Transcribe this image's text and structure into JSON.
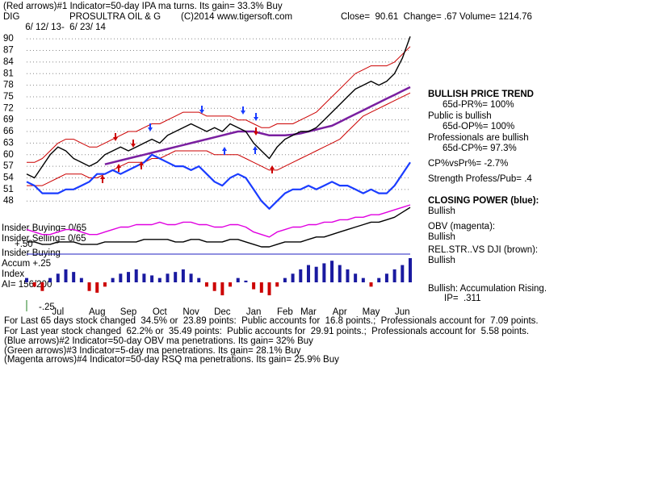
{
  "header": [
    "(Red arrows)#1 Indicator=50-day IPA ma turns. Its gain= 33.3% Buy",
    "DIG",
    "PROSULTRA OIL & G",
    "(C)2014 www.tigersoft.com",
    "Close=  90.61  Change= .67 Volume= 1214.76",
    " 6/ 12/ 13-  6/ 23/ 14"
  ],
  "sidebar": [
    "BULLISH PRICE TREND",
    "65d-PR%= 100%",
    "Public is bullish",
    "65d-OP%= 100%",
    "Professionals are bullish",
    "65d-CP%= 97.3%",
    "CP%vsPr%= -2.7%",
    "Strength Profess/Pub= .4",
    "CLOSING POWER (blue):",
    "Bullish",
    "OBV (magenta):",
    "Bullish",
    "REL.STR..VS DJI (brown):",
    "Bullish",
    "Bullish: Accumulation Rising.",
    "IP=  .311"
  ],
  "panel_labels": [
    "Insider Buying= 0/65",
    "Insider Selling= 0/65",
    "Insider Buying",
    "Accum +.25",
    "+.50",
    "Index",
    "AI= 156/200",
    "-.25"
  ],
  "footer": [
    "For Last 65 days stock changed  34.5% or  23.89 points:  Public accounts for  16.8 points.;  Professionals account for  7.09 points.",
    "For Last year stock changed  62.2% or  35.49 points:  Public accounts for  29.91 points.;  Professionals account for  5.58 points.",
    "(Blue arrows)#2 Indicator=50-day OBV ma penetrations. Its gain= 32% Buy",
    "(Green arrows)#3 Indicator=5-day ma penetrations. Its gain= 28.1% Buy",
    "(Magenta arrows)#4 Indicator=50-day RSQ ma penetrations. Its gain= 25.9% Buy"
  ],
  "chart_data": [
    {
      "type": "line",
      "categories": [
        null,
        null,
        null,
        null,
        "Jul",
        null,
        null,
        null,
        null,
        "Aug",
        null,
        null,
        null,
        "Sep",
        null,
        null,
        null,
        "Oct",
        null,
        null,
        null,
        "Nov",
        null,
        null,
        null,
        "Dec",
        null,
        null,
        null,
        "Jan",
        null,
        null,
        null,
        "Feb",
        null,
        null,
        "Mar",
        null,
        null,
        null,
        "Apr",
        null,
        null,
        null,
        "May",
        null,
        null,
        null,
        "Jun",
        null
      ],
      "ylim": [
        44.7,
        91.7
      ],
      "yticks": [
        48,
        51,
        54,
        57,
        60,
        63,
        66,
        69,
        72,
        75,
        78,
        81,
        84,
        87,
        90
      ],
      "grid": true,
      "series": [
        {
          "color": "#cc0000",
          "values": [
            58,
            58,
            59,
            61,
            63,
            64,
            64,
            63,
            62,
            62,
            63,
            64,
            65,
            66,
            66,
            67,
            68,
            68,
            69,
            70,
            71,
            71,
            71,
            70,
            70,
            70,
            70,
            69,
            69,
            68,
            67,
            67,
            68,
            68,
            68,
            69,
            70,
            71,
            73,
            75,
            77,
            79,
            81,
            82,
            83,
            83,
            83,
            84,
            86,
            88
          ]
        },
        {
          "color": "#cc0000",
          "values": [
            52,
            52,
            52,
            53,
            54,
            55,
            55,
            55,
            54,
            54,
            55,
            56,
            57,
            58,
            58,
            58,
            59,
            59,
            60,
            61,
            61,
            61,
            61,
            61,
            60,
            60,
            60,
            60,
            59,
            58,
            57,
            56,
            56,
            57,
            58,
            59,
            60,
            61,
            62,
            63,
            64,
            66,
            68,
            70,
            71,
            72,
            73,
            74,
            75,
            76
          ]
        },
        {
          "color": "#7a1fa0",
          "values": [
            null,
            null,
            null,
            null,
            null,
            null,
            null,
            null,
            null,
            null,
            57.5,
            58,
            58.5,
            59,
            59.5,
            60,
            60.5,
            61,
            61.5,
            62,
            62.5,
            63,
            63.5,
            64,
            64.5,
            65,
            65.5,
            66,
            66,
            66,
            65.5,
            65,
            65,
            65,
            65.2,
            65.5,
            66,
            66.5,
            67,
            67.5,
            68.5,
            69.5,
            70.5,
            71.5,
            72.5,
            73.5,
            74.5,
            75.5,
            76.5,
            77.5
          ]
        },
        {
          "color": "#1a3cff",
          "values": [
            53,
            52,
            50,
            50,
            50,
            51,
            51,
            52,
            53,
            55,
            55,
            56,
            55,
            56,
            57,
            58,
            60,
            59,
            58,
            57,
            57,
            56,
            57,
            55,
            53,
            52,
            54,
            55,
            54,
            51,
            48,
            46,
            48,
            50,
            51,
            51,
            52,
            51,
            52,
            53,
            52,
            52,
            51,
            50,
            51,
            50,
            50,
            52,
            55,
            58
          ]
        },
        {
          "color": "#000000",
          "values": [
            55,
            54,
            57,
            60,
            62,
            61,
            59,
            58,
            57,
            58,
            60,
            61,
            62,
            61,
            62,
            63,
            64,
            63,
            65,
            66,
            67,
            68,
            67,
            66,
            67,
            66,
            68,
            67,
            66,
            63,
            61,
            59,
            62,
            64,
            65,
            66,
            66,
            67,
            69,
            71,
            73,
            75,
            77,
            78,
            79,
            78,
            79,
            81,
            85,
            90.6
          ]
        }
      ]
    },
    {
      "type": "line",
      "series": [
        {
          "color": "#e000e0",
          "values": [
            10,
            9,
            8,
            8,
            9,
            10,
            10,
            9,
            8,
            8,
            9,
            10,
            11,
            11,
            12,
            12,
            12,
            13,
            12,
            12,
            13,
            13,
            12,
            12,
            11,
            11,
            12,
            12,
            11,
            9,
            8,
            7,
            9,
            10,
            11,
            11,
            12,
            12,
            13,
            13,
            14,
            14,
            15,
            15,
            16,
            16,
            17,
            18,
            19,
            20
          ]
        },
        {
          "color": "#000000",
          "values": [
            5,
            5,
            4,
            4,
            5,
            5,
            5,
            4,
            4,
            4,
            5,
            5,
            5,
            5,
            5,
            6,
            6,
            6,
            6,
            5,
            5,
            6,
            6,
            5,
            5,
            5,
            6,
            6,
            5,
            4,
            3,
            3,
            4,
            5,
            5,
            5,
            6,
            7,
            7,
            8,
            9,
            10,
            11,
            12,
            13,
            13,
            14,
            15,
            17,
            19
          ]
        }
      ]
    },
    {
      "type": "bar",
      "color": "#1a1aa0",
      "negative_color": "#cc0000",
      "values": [
        0.05,
        -0.05,
        -0.1,
        0.05,
        0.1,
        0.15,
        0.12,
        0.05,
        -0.1,
        -0.12,
        -0.05,
        0.05,
        0.1,
        0.12,
        0.15,
        0.1,
        0.08,
        0.05,
        0.1,
        0.12,
        0.15,
        0.1,
        0.05,
        -0.05,
        -0.1,
        -0.15,
        -0.05,
        0.05,
        0.02,
        -0.08,
        -0.12,
        -0.15,
        -0.05,
        0.05,
        0.1,
        0.15,
        0.2,
        0.18,
        0.22,
        0.25,
        0.2,
        0.15,
        0.1,
        0.05,
        -0.05,
        0.05,
        0.1,
        0.15,
        0.2,
        0.28
      ]
    }
  ]
}
